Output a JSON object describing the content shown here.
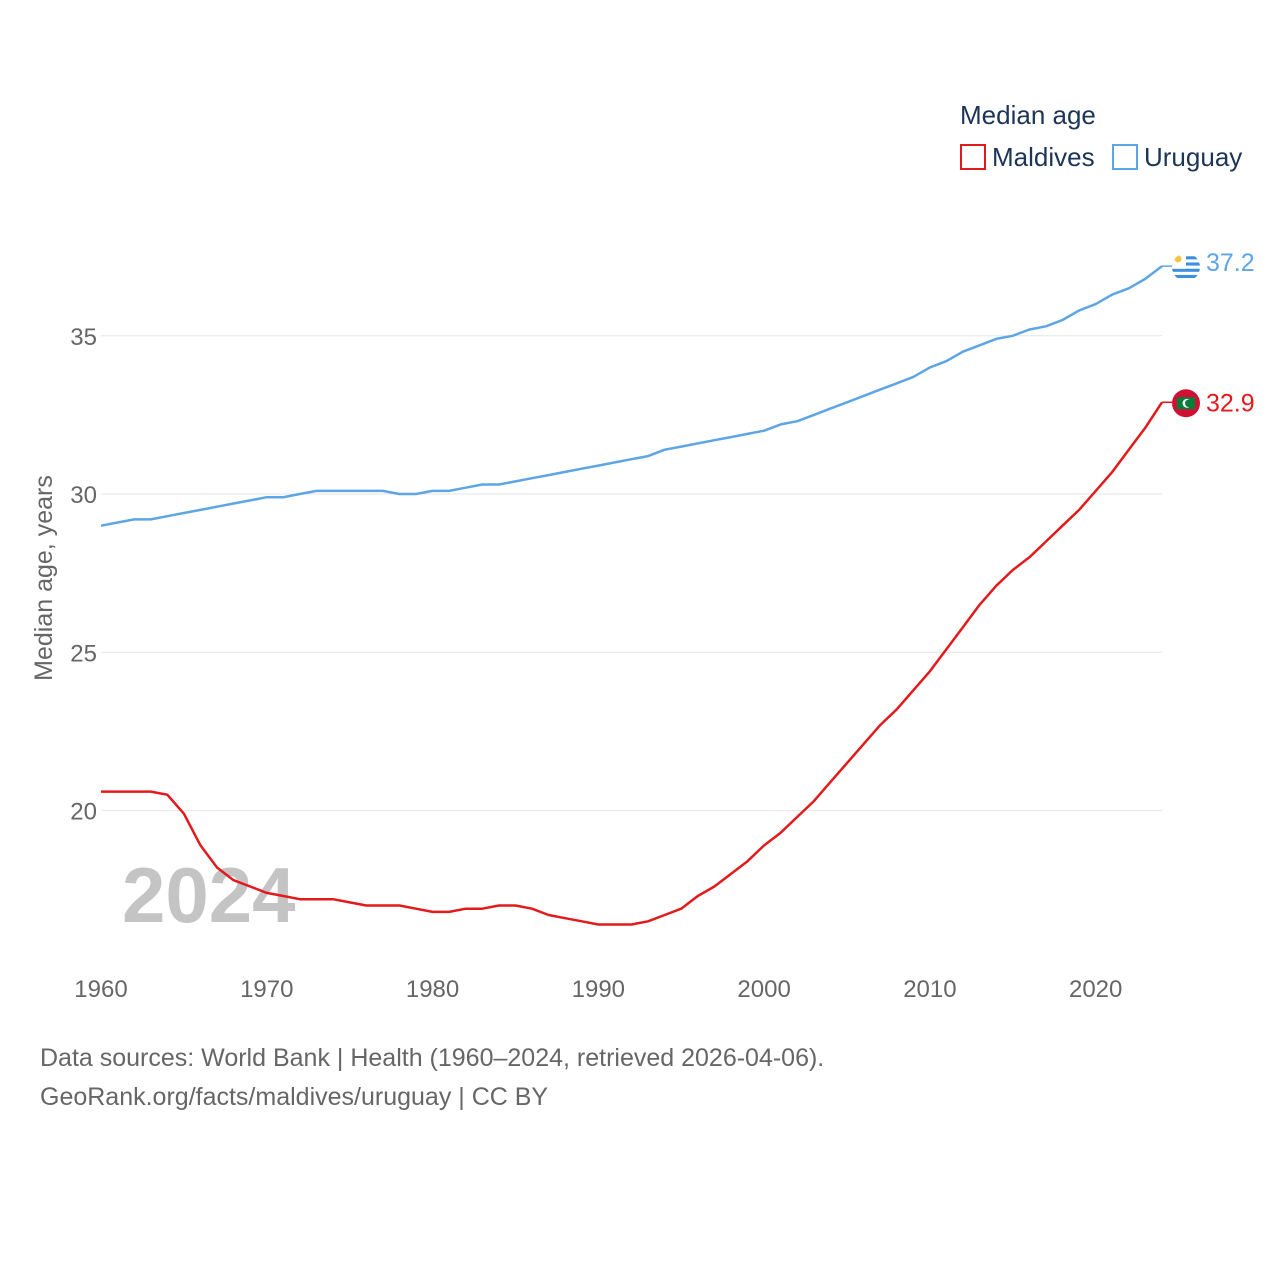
{
  "chart_data": {
    "type": "line",
    "legend_title": "Median age",
    "ylabel": "Median age, years",
    "xlabel": "",
    "xlim": [
      1960,
      2024
    ],
    "ylim": [
      15.5,
      38.5
    ],
    "y_ticks": [
      20,
      25,
      30,
      35
    ],
    "x_ticks": [
      1960,
      1970,
      1980,
      1990,
      2000,
      2010,
      2020
    ],
    "current_year": "2024",
    "legend_position": "top-right",
    "series": [
      {
        "name": "Maldives",
        "color": "#e31a1c",
        "end_label": "32.9",
        "flag_icon": "maldives-flag-icon",
        "x": [
          1960,
          1961,
          1962,
          1963,
          1964,
          1965,
          1966,
          1967,
          1968,
          1969,
          1970,
          1971,
          1972,
          1973,
          1974,
          1975,
          1976,
          1977,
          1978,
          1979,
          1980,
          1981,
          1982,
          1983,
          1984,
          1985,
          1986,
          1987,
          1988,
          1989,
          1990,
          1991,
          1992,
          1993,
          1994,
          1995,
          1996,
          1997,
          1998,
          1999,
          2000,
          2001,
          2002,
          2003,
          2004,
          2005,
          2006,
          2007,
          2008,
          2009,
          2010,
          2011,
          2012,
          2013,
          2014,
          2015,
          2016,
          2017,
          2018,
          2019,
          2020,
          2021,
          2022,
          2023,
          2024
        ],
        "values": [
          20.6,
          20.6,
          20.6,
          20.6,
          20.5,
          19.9,
          18.9,
          18.2,
          17.8,
          17.6,
          17.4,
          17.3,
          17.2,
          17.2,
          17.2,
          17.1,
          17.0,
          17.0,
          17.0,
          16.9,
          16.8,
          16.8,
          16.9,
          16.9,
          17.0,
          17.0,
          16.9,
          16.7,
          16.6,
          16.5,
          16.4,
          16.4,
          16.4,
          16.5,
          16.7,
          16.9,
          17.3,
          17.6,
          18.0,
          18.4,
          18.9,
          19.3,
          19.8,
          20.3,
          20.9,
          21.5,
          22.1,
          22.7,
          23.2,
          23.8,
          24.4,
          25.1,
          25.8,
          26.5,
          27.1,
          27.6,
          28.0,
          28.5,
          29.0,
          29.5,
          30.1,
          30.7,
          31.4,
          32.1,
          32.9
        ]
      },
      {
        "name": "Uruguay",
        "color": "#5ea5e6",
        "end_label": "37.2",
        "flag_icon": "uruguay-flag-icon",
        "x": [
          1960,
          1961,
          1962,
          1963,
          1964,
          1965,
          1966,
          1967,
          1968,
          1969,
          1970,
          1971,
          1972,
          1973,
          1974,
          1975,
          1976,
          1977,
          1978,
          1979,
          1980,
          1981,
          1982,
          1983,
          1984,
          1985,
          1986,
          1987,
          1988,
          1989,
          1990,
          1991,
          1992,
          1993,
          1994,
          1995,
          1996,
          1997,
          1998,
          1999,
          2000,
          2001,
          2002,
          2003,
          2004,
          2005,
          2006,
          2007,
          2008,
          2009,
          2010,
          2011,
          2012,
          2013,
          2014,
          2015,
          2016,
          2017,
          2018,
          2019,
          2020,
          2021,
          2022,
          2023,
          2024
        ],
        "values": [
          29.0,
          29.1,
          29.2,
          29.2,
          29.3,
          29.4,
          29.5,
          29.6,
          29.7,
          29.8,
          29.9,
          29.9,
          30.0,
          30.1,
          30.1,
          30.1,
          30.1,
          30.1,
          30.0,
          30.0,
          30.1,
          30.1,
          30.2,
          30.3,
          30.3,
          30.4,
          30.5,
          30.6,
          30.7,
          30.8,
          30.9,
          31.0,
          31.1,
          31.2,
          31.4,
          31.5,
          31.6,
          31.7,
          31.8,
          31.9,
          32.0,
          32.2,
          32.3,
          32.5,
          32.7,
          32.9,
          33.1,
          33.3,
          33.5,
          33.7,
          34.0,
          34.2,
          34.5,
          34.7,
          34.9,
          35.0,
          35.2,
          35.3,
          35.5,
          35.8,
          36.0,
          36.3,
          36.5,
          36.8,
          37.2
        ]
      }
    ]
  },
  "source": {
    "line1": "Data sources: World Bank | Health (1960–2024, retrieved 2026-04-06).",
    "line2": "GeoRank.org/facts/maldives/uruguay | CC BY"
  }
}
